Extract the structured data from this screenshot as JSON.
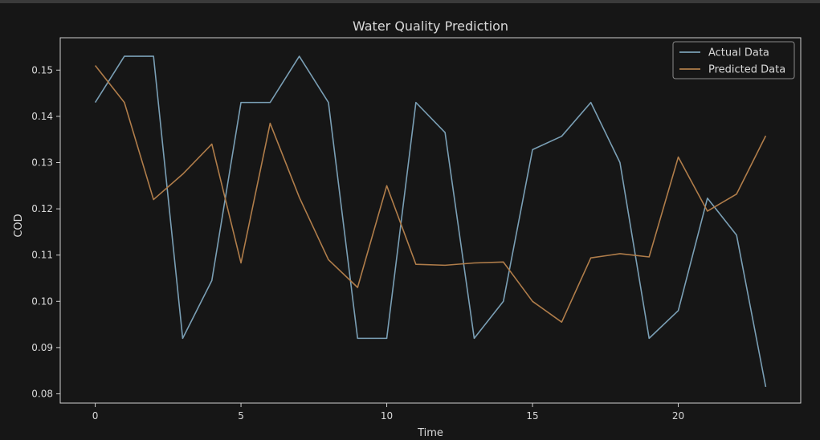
{
  "chart_data": {
    "type": "line",
    "title": "Water Quality Prediction",
    "xlabel": "Time",
    "ylabel": "COD",
    "xlim": [
      -1.2,
      24.2
    ],
    "ylim": [
      0.078,
      0.157
    ],
    "x_ticks": [
      0,
      5,
      10,
      15,
      20
    ],
    "y_ticks": [
      0.08,
      0.09,
      0.1,
      0.11,
      0.12,
      0.13,
      0.14,
      0.15
    ],
    "y_tick_labels": [
      "0.08",
      "0.09",
      "0.10",
      "0.11",
      "0.12",
      "0.13",
      "0.14",
      "0.15"
    ],
    "grid": false,
    "legend_position": "top-right",
    "x": [
      0,
      1,
      2,
      3,
      4,
      5,
      6,
      7,
      8,
      9,
      10,
      11,
      12,
      13,
      14,
      15,
      16,
      17,
      18,
      19,
      20,
      21,
      22,
      23
    ],
    "series": [
      {
        "name": "Actual Data",
        "color": "#7a9fb5",
        "values": [
          0.143,
          0.153,
          0.153,
          0.092,
          0.1045,
          0.143,
          0.143,
          0.153,
          0.143,
          0.092,
          0.092,
          0.143,
          0.1365,
          0.092,
          0.1,
          0.1328,
          0.1357,
          0.143,
          0.13,
          0.092,
          0.098,
          0.1223,
          0.1143,
          0.0815
        ]
      },
      {
        "name": "Predicted Data",
        "color": "#b07d4a",
        "values": [
          0.151,
          0.143,
          0.122,
          0.1275,
          0.134,
          0.1083,
          0.1385,
          0.1225,
          0.109,
          0.103,
          0.125,
          0.108,
          0.1078,
          0.1083,
          0.1085,
          0.1,
          0.0955,
          0.1094,
          0.1103,
          0.1096,
          0.1312,
          0.1195,
          0.1232,
          0.1358
        ]
      }
    ]
  }
}
